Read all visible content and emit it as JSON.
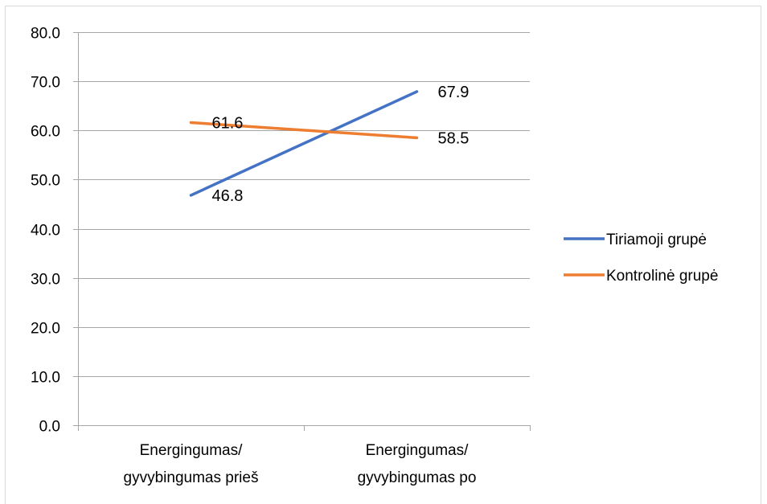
{
  "chart_data": {
    "type": "line",
    "title": "",
    "xlabel": "",
    "ylabel": "",
    "categories": [
      [
        "Energingumas/",
        "gyvybingumas prieš"
      ],
      [
        "Energingumas/",
        "gyvybingumas po"
      ]
    ],
    "ylim": [
      0,
      80
    ],
    "y_ticks": [
      "0.0",
      "10.0",
      "20.0",
      "30.0",
      "40.0",
      "50.0",
      "60.0",
      "70.0",
      "80.0"
    ],
    "grid": true,
    "legend_position": "right",
    "series": [
      {
        "name": "Tiriamoji grupė",
        "values": [
          46.8,
          67.9
        ],
        "labels": [
          "46.8",
          "67.9"
        ],
        "color": "#4472C4"
      },
      {
        "name": "Kontrolinė grupė",
        "values": [
          61.6,
          58.5
        ],
        "labels": [
          "61.6",
          "58.5"
        ],
        "color": "#ED7D31"
      }
    ]
  }
}
